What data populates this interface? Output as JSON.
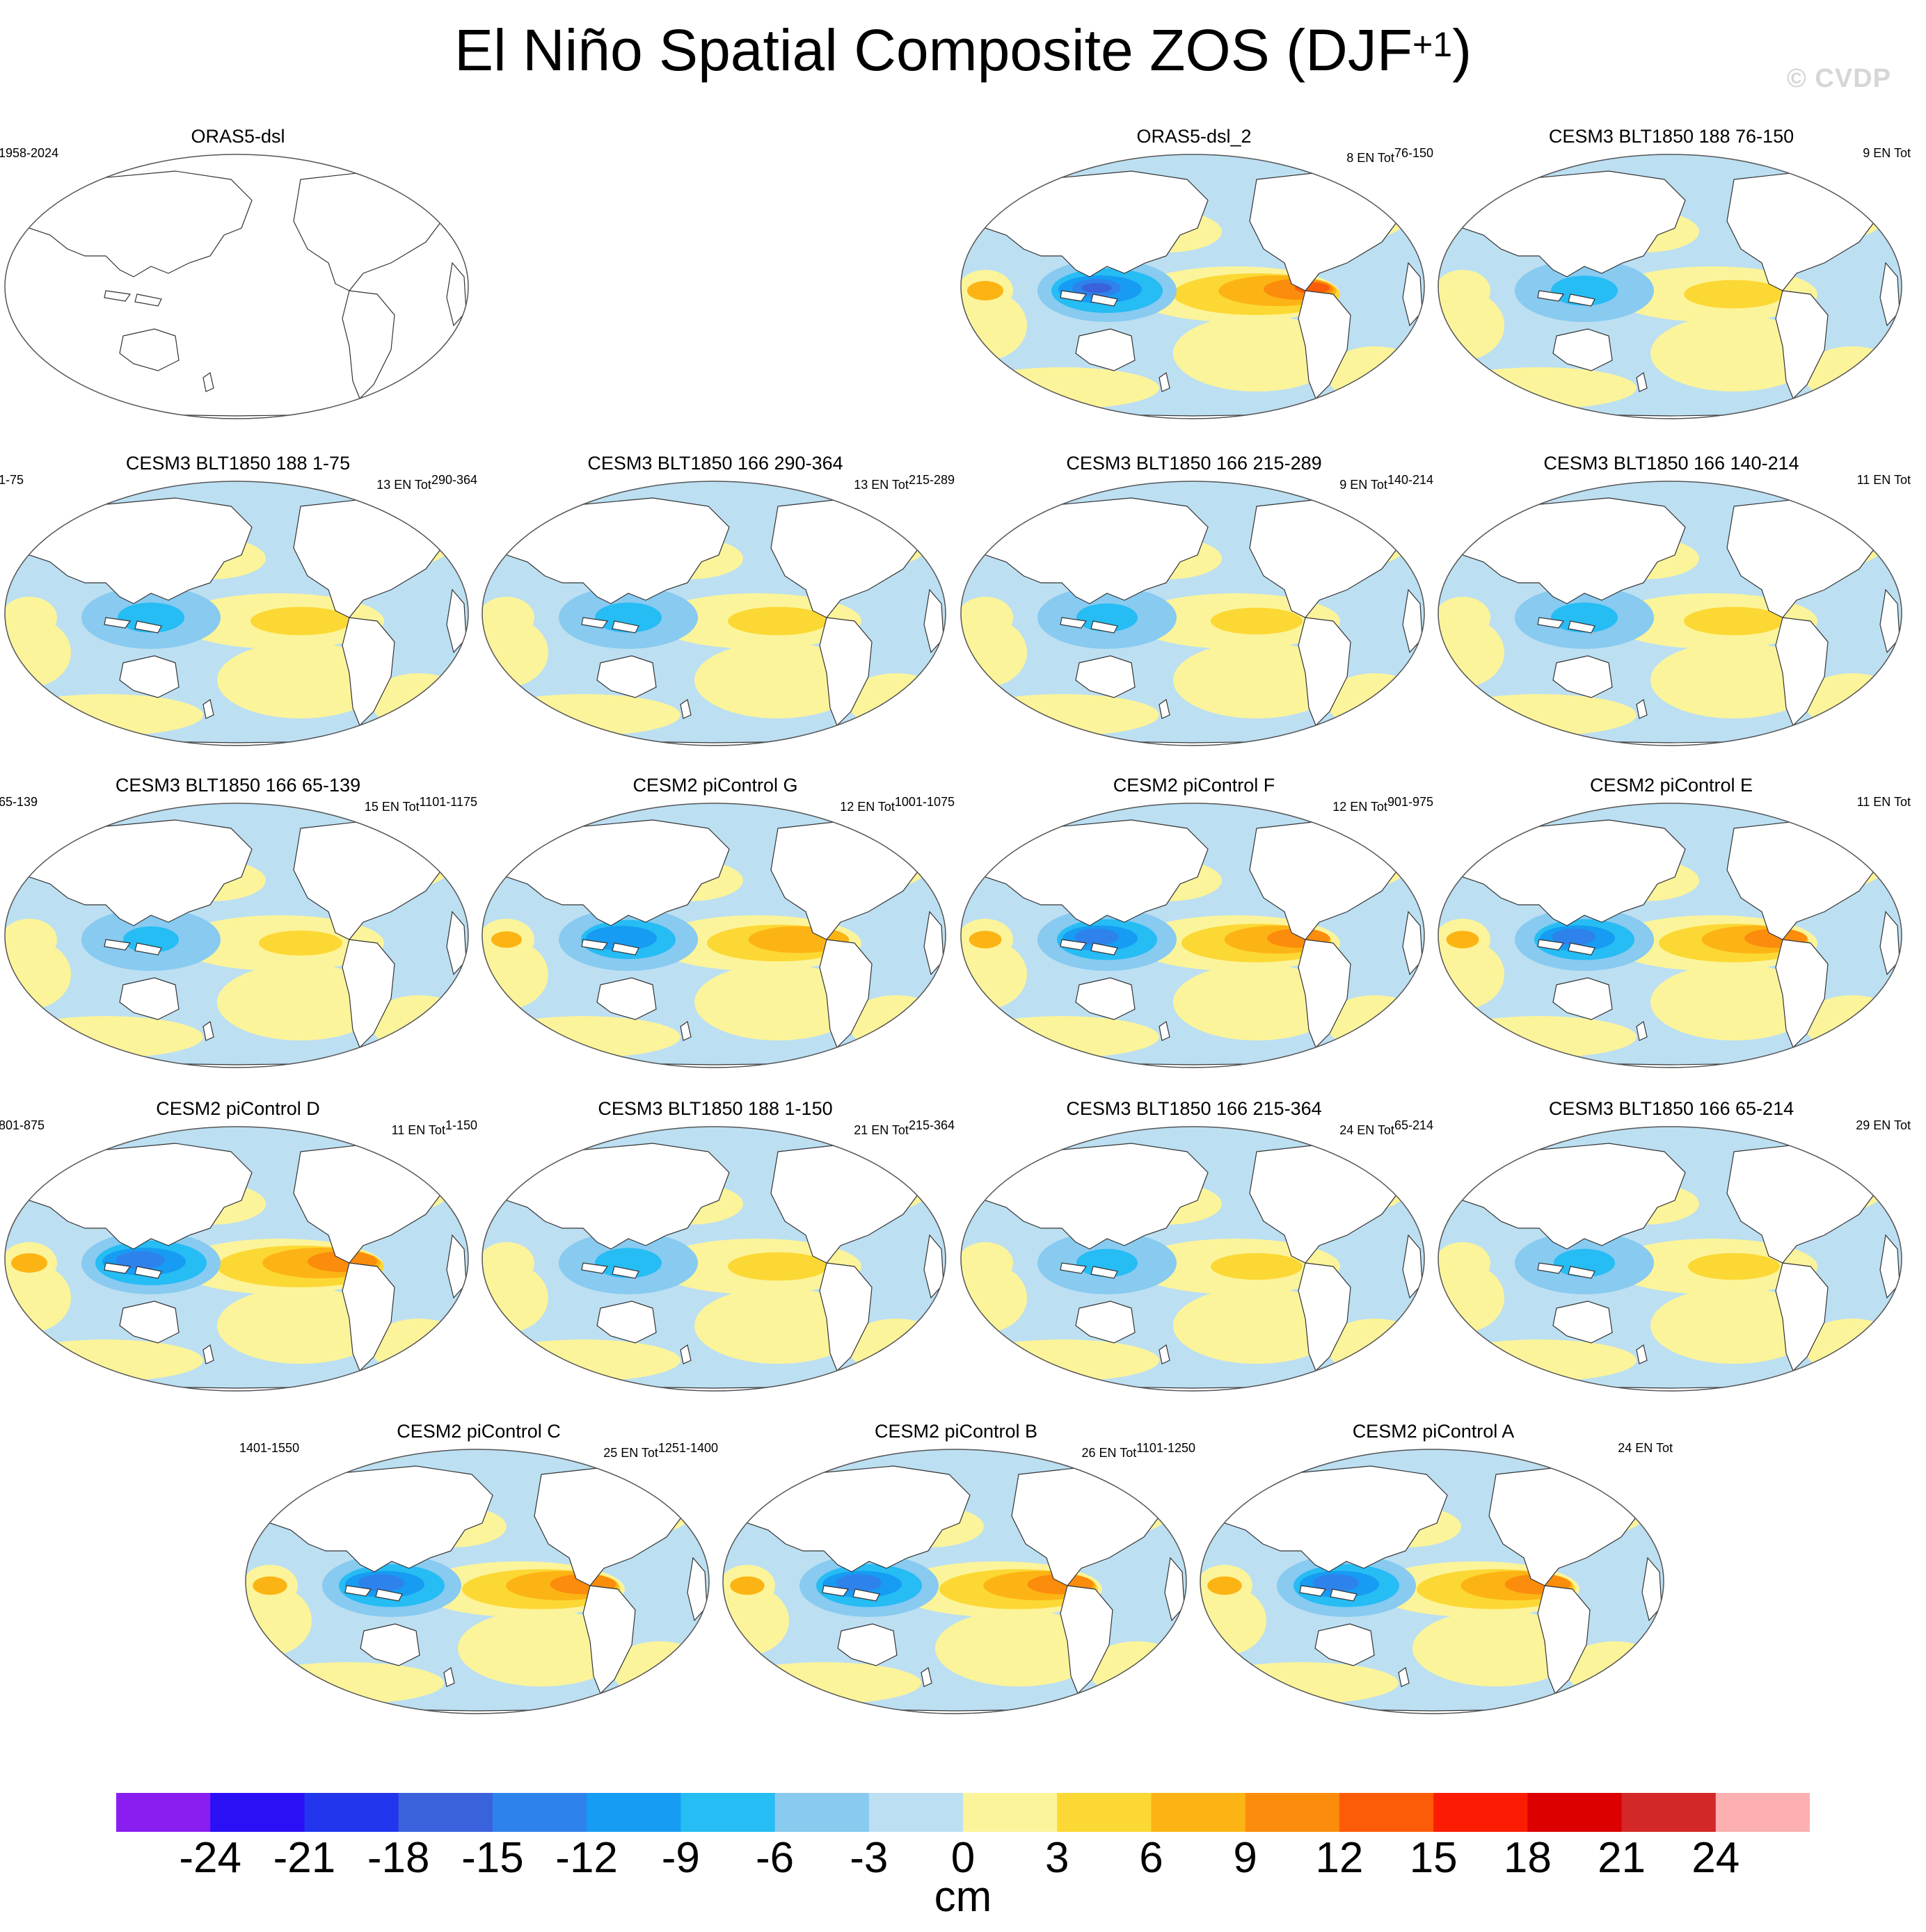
{
  "chart_data": [
    {
      "type": "heatmap",
      "title": "ORAS5-dsl",
      "left_label": "1958-2024",
      "right_label": "",
      "pattern": "empty"
    },
    {
      "type": "heatmap",
      "title": "ORAS5-dsl_2",
      "left_label": "",
      "right_label": "8 EN Tot",
      "right_sup": "76-150",
      "pattern": "observed",
      "strength": 1.0
    },
    {
      "type": "heatmap",
      "title": "CESM3 BLT1850 188 76-150",
      "left_label": "",
      "right_label": "9 EN Tot",
      "pattern": "model",
      "strength": 0.6
    },
    {
      "type": "heatmap",
      "title": "CESM3 BLT1850 188 1-75",
      "left_label": "1-75",
      "right_label": "13 EN Tot",
      "right_sup": "290-364",
      "pattern": "model",
      "strength": 0.6
    },
    {
      "type": "heatmap",
      "title": "CESM3 BLT1850 166 290-364",
      "left_label": "",
      "right_label": "13 EN Tot",
      "right_sup": "215-289",
      "pattern": "model",
      "strength": 0.6
    },
    {
      "type": "heatmap",
      "title": "CESM3 BLT1850 166 215-289",
      "left_label": "",
      "right_label": "9 EN Tot",
      "right_sup": "140-214",
      "pattern": "model",
      "strength": 0.55
    },
    {
      "type": "heatmap",
      "title": "CESM3 BLT1850 166 140-214",
      "left_label": "",
      "right_label": "11 EN Tot",
      "pattern": "model",
      "strength": 0.6
    },
    {
      "type": "heatmap",
      "title": "CESM3 BLT1850 166 65-139",
      "left_label": "65-139",
      "right_label": "15 EN Tot",
      "right_sup": "1101-1175",
      "pattern": "model",
      "strength": 0.5
    },
    {
      "type": "heatmap",
      "title": "CESM2 piControl G",
      "left_label": "",
      "right_label": "12 EN Tot",
      "right_sup": "1001-1075",
      "pattern": "cesm2",
      "strength": 0.85
    },
    {
      "type": "heatmap",
      "title": "CESM2 piControl F",
      "left_label": "",
      "right_label": "12 EN Tot",
      "right_sup": "901-975",
      "pattern": "cesm2",
      "strength": 0.9
    },
    {
      "type": "heatmap",
      "title": "CESM2 piControl E",
      "left_label": "",
      "right_label": "11 EN Tot",
      "pattern": "cesm2",
      "strength": 0.9
    },
    {
      "type": "heatmap",
      "title": "CESM2 piControl D",
      "left_label": "801-875",
      "right_label": "11 EN Tot",
      "right_sup": "1-150",
      "pattern": "cesm2",
      "strength": 1.0
    },
    {
      "type": "heatmap",
      "title": "CESM3 BLT1850 188 1-150",
      "left_label": "",
      "right_label": "21 EN Tot",
      "right_sup": "215-364",
      "pattern": "model",
      "strength": 0.6
    },
    {
      "type": "heatmap",
      "title": "CESM3 BLT1850 166 215-364",
      "left_label": "",
      "right_label": "24 EN Tot",
      "right_sup": "65-214",
      "pattern": "model",
      "strength": 0.55
    },
    {
      "type": "heatmap",
      "title": "CESM3 BLT1850 166 65-214",
      "left_label": "",
      "right_label": "29 EN Tot",
      "pattern": "model",
      "strength": 0.55
    },
    {
      "type": "heatmap",
      "title": "CESM2 piControl C",
      "left_label": "1401-1550",
      "right_label": "25 EN Tot",
      "right_sup": "1251-1400",
      "pattern": "cesm2",
      "strength": 0.95
    },
    {
      "type": "heatmap",
      "title": "CESM2 piControl B",
      "left_label": "",
      "right_label": "26 EN Tot",
      "right_sup": "1101-1250",
      "pattern": "cesm2",
      "strength": 0.95
    },
    {
      "type": "heatmap",
      "title": "CESM2 piControl A",
      "left_label": "",
      "right_label": "24 EN Tot",
      "pattern": "cesm2",
      "strength": 0.95
    }
  ],
  "figure": {
    "title_main": "El Niño Spatial Composite ZOS (DJF",
    "title_sup": "+1",
    "title_close": ")",
    "watermark": "© CVDP",
    "units": "cm"
  },
  "colorbar": {
    "levels": [
      -24,
      -21,
      -18,
      -15,
      -12,
      -9,
      -6,
      -3,
      0,
      3,
      6,
      9,
      12,
      15,
      18,
      21,
      24
    ],
    "colors": [
      "#8a1ef0",
      "#2a10f4",
      "#2236ee",
      "#3a62dc",
      "#2e82ec",
      "#169cf2",
      "#26bcf4",
      "#88caf0",
      "#bcdff2",
      "#fcf49a",
      "#fcd834",
      "#fcb414",
      "#fc8c0c",
      "#fc5c08",
      "#fc1c04",
      "#dc0000",
      "#d42828",
      "#fcb0b0"
    ]
  }
}
